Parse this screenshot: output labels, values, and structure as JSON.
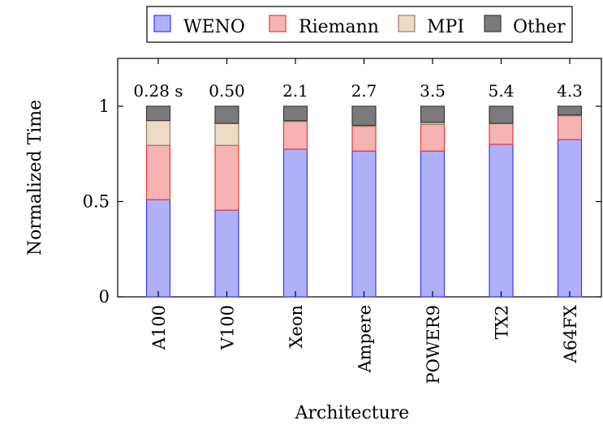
{
  "chart_data": {
    "type": "bar",
    "stacked": true,
    "orientation": "vertical",
    "title": "",
    "xlabel": "Architecture",
    "ylabel": "Normalized Time",
    "ylim": [
      0,
      1.25
    ],
    "yticks": [
      0,
      0.5,
      1
    ],
    "ytick_labels": [
      "0",
      "0.5",
      "1"
    ],
    "grid": false,
    "legend_position": "top",
    "categories": [
      "A100",
      "V100",
      "Xeon",
      "Ampere",
      "POWER9",
      "TX2",
      "A64FX"
    ],
    "top_labels": [
      "0.28 s",
      "0.50",
      "2.1",
      "2.7",
      "3.5",
      "5.4",
      "4.3"
    ],
    "series": [
      {
        "name": "WENO",
        "color": "#b0b0f8",
        "edge": "#3a3aee",
        "values": [
          0.51,
          0.455,
          0.775,
          0.765,
          0.765,
          0.8,
          0.825
        ]
      },
      {
        "name": "Riemann",
        "color": "#f6b3b3",
        "edge": "#e83a3a",
        "values": [
          0.285,
          0.34,
          0.145,
          0.13,
          0.14,
          0.11,
          0.125
        ]
      },
      {
        "name": "MPI",
        "color": "#ecdcc6",
        "edge": "#9a7d5c",
        "values": [
          0.13,
          0.115,
          0.005,
          0.005,
          0.01,
          0.0,
          0.005
        ]
      },
      {
        "name": "Other",
        "color": "#7a7a7a",
        "edge": "#3a3a3a",
        "values": [
          0.075,
          0.09,
          0.075,
          0.1,
          0.085,
          0.09,
          0.045
        ]
      }
    ]
  }
}
